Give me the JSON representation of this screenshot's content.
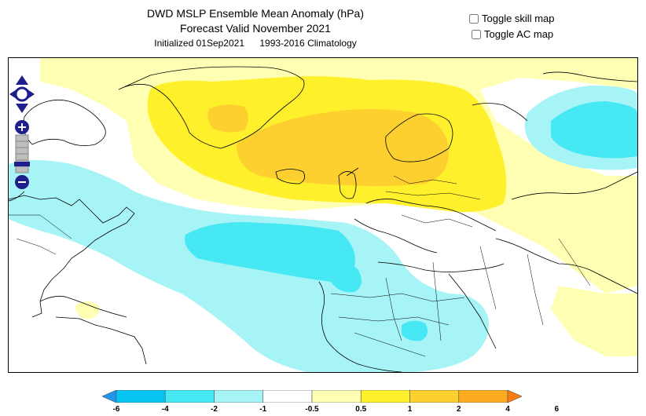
{
  "header": {
    "title": "DWD MSLP Ensemble Mean Anomaly (hPa)",
    "subtitle": "Forecast Valid November 2021",
    "initialized": "Initialized 01Sep2021",
    "climatology": "1993-2016 Climatology"
  },
  "toggles": [
    {
      "label": "Toggle skill map",
      "checked": false
    },
    {
      "label": "Toggle AC map",
      "checked": false
    }
  ],
  "map": {
    "navigation_icons": [
      "pan-up-icon",
      "pan-left-icon",
      "pan-right-icon",
      "pan-down-icon",
      "zoom-in-icon",
      "zoom-out-icon"
    ]
  },
  "legend": {
    "labels": [
      "-6",
      "-4",
      "-2",
      "-1",
      "-0.5",
      "0.5",
      "1",
      "2",
      "4",
      "6"
    ],
    "colors": [
      "#1e96f0",
      "#06c4f2",
      "#46e8f4",
      "#a6f4f5",
      "#ffffff",
      "#ffffb4",
      "#fff02c",
      "#fdcf2f",
      "#fdab20",
      "#fa7d0d"
    ]
  }
}
